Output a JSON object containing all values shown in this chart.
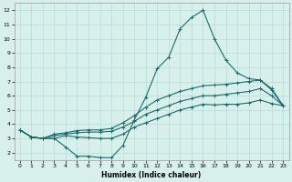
{
  "xlabel": "Humidex (Indice chaleur)",
  "bg_color": "#d8f0ec",
  "grid_color": "#b8dcd6",
  "line_color": "#1a6b6b",
  "xlim": [
    -0.5,
    23.5
  ],
  "ylim": [
    1.5,
    12.5
  ],
  "xticks": [
    0,
    1,
    2,
    3,
    4,
    5,
    6,
    7,
    8,
    9,
    10,
    11,
    12,
    13,
    14,
    15,
    16,
    17,
    18,
    19,
    20,
    21,
    22,
    23
  ],
  "yticks": [
    2,
    3,
    4,
    5,
    6,
    7,
    8,
    9,
    10,
    11,
    12
  ],
  "curve_max": [
    [
      0,
      3.6
    ],
    [
      1,
      3.1
    ],
    [
      2,
      3.0
    ],
    [
      3,
      3.0
    ],
    [
      4,
      2.4
    ],
    [
      5,
      1.75
    ],
    [
      6,
      1.75
    ],
    [
      7,
      1.65
    ],
    [
      8,
      1.65
    ],
    [
      9,
      2.5
    ],
    [
      10,
      4.3
    ],
    [
      11,
      5.9
    ],
    [
      12,
      7.9
    ],
    [
      13,
      8.7
    ],
    [
      14,
      10.7
    ],
    [
      15,
      11.5
    ],
    [
      16,
      12.0
    ],
    [
      17,
      10.0
    ],
    [
      18,
      8.5
    ],
    [
      19,
      7.6
    ],
    [
      20,
      7.2
    ],
    [
      21,
      7.1
    ],
    [
      22,
      6.4
    ],
    [
      23,
      5.3
    ]
  ],
  "curve_upper": [
    [
      0,
      3.6
    ],
    [
      1,
      3.1
    ],
    [
      2,
      3.0
    ],
    [
      3,
      3.3
    ],
    [
      4,
      3.4
    ],
    [
      5,
      3.55
    ],
    [
      6,
      3.6
    ],
    [
      7,
      3.6
    ],
    [
      8,
      3.7
    ],
    [
      9,
      4.1
    ],
    [
      10,
      4.6
    ],
    [
      11,
      5.2
    ],
    [
      12,
      5.7
    ],
    [
      13,
      6.0
    ],
    [
      14,
      6.3
    ],
    [
      15,
      6.5
    ],
    [
      16,
      6.7
    ],
    [
      17,
      6.75
    ],
    [
      18,
      6.8
    ],
    [
      19,
      6.9
    ],
    [
      20,
      7.0
    ],
    [
      21,
      7.1
    ],
    [
      22,
      6.5
    ],
    [
      23,
      5.3
    ]
  ],
  "curve_lower": [
    [
      0,
      3.6
    ],
    [
      1,
      3.1
    ],
    [
      2,
      3.0
    ],
    [
      3,
      3.2
    ],
    [
      4,
      3.3
    ],
    [
      5,
      3.4
    ],
    [
      6,
      3.45
    ],
    [
      7,
      3.45
    ],
    [
      8,
      3.5
    ],
    [
      9,
      3.8
    ],
    [
      10,
      4.2
    ],
    [
      11,
      4.7
    ],
    [
      12,
      5.0
    ],
    [
      13,
      5.3
    ],
    [
      14,
      5.6
    ],
    [
      15,
      5.8
    ],
    [
      16,
      6.0
    ],
    [
      17,
      6.0
    ],
    [
      18,
      6.1
    ],
    [
      19,
      6.2
    ],
    [
      20,
      6.3
    ],
    [
      21,
      6.5
    ],
    [
      22,
      6.0
    ],
    [
      23,
      5.3
    ]
  ],
  "curve_min": [
    [
      0,
      3.6
    ],
    [
      1,
      3.1
    ],
    [
      2,
      3.0
    ],
    [
      3,
      3.0
    ],
    [
      4,
      3.2
    ],
    [
      5,
      3.1
    ],
    [
      6,
      3.05
    ],
    [
      7,
      3.0
    ],
    [
      8,
      3.0
    ],
    [
      9,
      3.3
    ],
    [
      10,
      3.8
    ],
    [
      11,
      4.1
    ],
    [
      12,
      4.4
    ],
    [
      13,
      4.7
    ],
    [
      14,
      5.0
    ],
    [
      15,
      5.2
    ],
    [
      16,
      5.4
    ],
    [
      17,
      5.35
    ],
    [
      18,
      5.4
    ],
    [
      19,
      5.4
    ],
    [
      20,
      5.5
    ],
    [
      21,
      5.7
    ],
    [
      22,
      5.45
    ],
    [
      23,
      5.3
    ]
  ]
}
